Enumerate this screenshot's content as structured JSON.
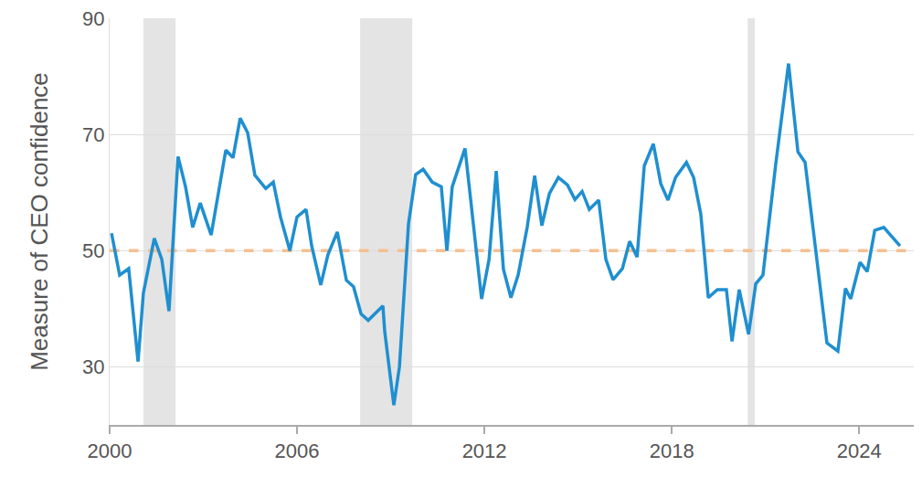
{
  "chart_data": {
    "type": "line",
    "y_label": "Measure of CEO confidence",
    "color": "#1f8fd0",
    "grid": true,
    "xlim": [
      2000,
      2025.75
    ],
    "xticks": [
      2000,
      2006,
      2012,
      2018,
      2024
    ],
    "ylim": [
      20,
      90
    ],
    "yticks": [
      30,
      50,
      70,
      90
    ],
    "reference_line": {
      "value": 50,
      "color": "#f5c08f",
      "line_style": "dashed"
    },
    "shaded_periods": [
      [
        2001.08,
        2002.11
      ],
      [
        2008.02,
        2009.69
      ],
      [
        2020.43,
        2020.66
      ]
    ],
    "x": [
      2000.06,
      2000.32,
      2000.61,
      2000.91,
      2001.08,
      2001.43,
      2001.67,
      2001.9,
      2002.19,
      2002.43,
      2002.66,
      2002.9,
      2003.25,
      2003.48,
      2003.72,
      2003.95,
      2004.18,
      2004.42,
      2004.65,
      2005.0,
      2005.24,
      2005.47,
      2005.77,
      2006.0,
      2006.29,
      2006.47,
      2006.76,
      2006.99,
      2007.29,
      2007.58,
      2007.81,
      2008.05,
      2008.28,
      2008.75,
      2008.81,
      2009.1,
      2009.28,
      2009.57,
      2009.8,
      2010.04,
      2010.33,
      2010.62,
      2010.8,
      2010.97,
      2011.38,
      2011.91,
      2012.15,
      2012.38,
      2012.61,
      2012.85,
      2013.08,
      2013.37,
      2013.61,
      2013.84,
      2014.08,
      2014.37,
      2014.66,
      2014.9,
      2015.13,
      2015.36,
      2015.66,
      2015.89,
      2016.12,
      2016.42,
      2016.65,
      2016.89,
      2017.12,
      2017.41,
      2017.65,
      2017.88,
      2018.12,
      2018.47,
      2018.7,
      2018.93,
      2019.17,
      2019.46,
      2019.75,
      2019.93,
      2020.16,
      2020.46,
      2020.69,
      2020.92,
      2021.33,
      2021.74,
      2022.04,
      2022.27,
      2022.56,
      2022.97,
      2023.32,
      2023.56,
      2023.73,
      2024.03,
      2024.26,
      2024.5,
      2024.79,
      2025.31
    ],
    "values": [
      53.0,
      45.8,
      46.9,
      30.9,
      42.7,
      52.1,
      48.5,
      39.6,
      66.2,
      61.0,
      54.0,
      58.2,
      52.7,
      60.2,
      67.3,
      66.0,
      72.8,
      70.3,
      63.0,
      60.7,
      61.8,
      55.8,
      50.0,
      55.8,
      57.1,
      50.8,
      44.1,
      49.3,
      53.2,
      44.9,
      43.8,
      39.1,
      38.0,
      40.5,
      36.0,
      23.4,
      30.0,
      54.6,
      63.1,
      64.0,
      61.8,
      61.0,
      50.0,
      61.0,
      67.6,
      41.7,
      48.5,
      63.7,
      46.8,
      41.9,
      45.8,
      54.0,
      62.9,
      54.3,
      59.8,
      62.6,
      61.3,
      58.8,
      60.2,
      57.1,
      58.7,
      48.5,
      45.0,
      46.9,
      51.6,
      48.9,
      64.6,
      68.4,
      61.5,
      58.7,
      62.6,
      65.2,
      62.6,
      56.3,
      41.9,
      43.3,
      43.3,
      34.4,
      43.3,
      35.6,
      44.3,
      45.8,
      64.9,
      82.2,
      67.0,
      65.2,
      52.7,
      34.1,
      32.7,
      43.5,
      41.7,
      48.0,
      46.4,
      53.5,
      54.0,
      50.8
    ]
  }
}
